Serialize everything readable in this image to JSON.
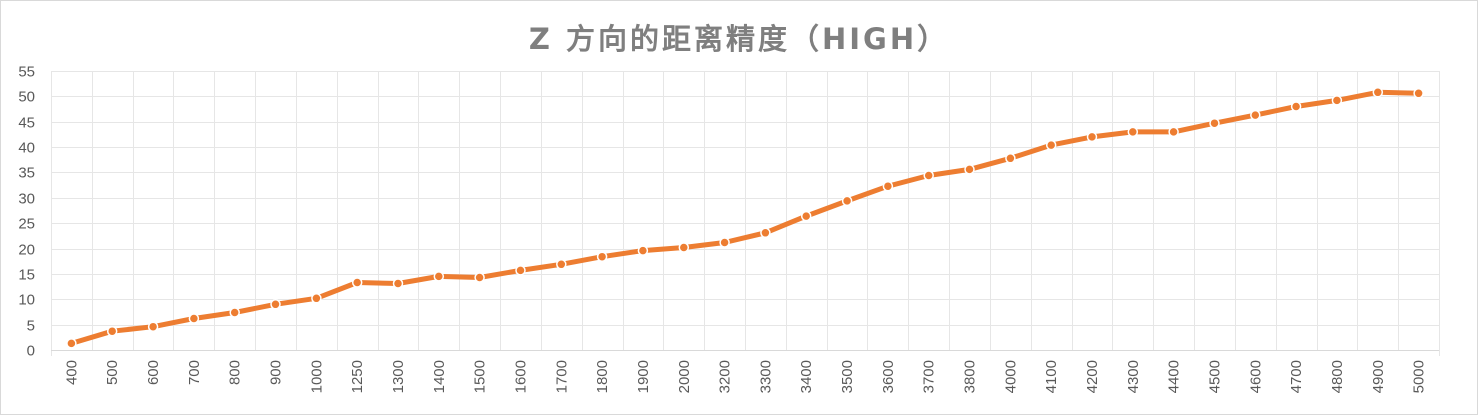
{
  "chart_data": {
    "type": "line",
    "title": "Z 方向的距离精度（HIGH）",
    "xlabel": "",
    "ylabel": "",
    "categories": [
      "400",
      "500",
      "600",
      "700",
      "800",
      "900",
      "1000",
      "1250",
      "1300",
      "1400",
      "1500",
      "1600",
      "1700",
      "1800",
      "1900",
      "2000",
      "3200",
      "3300",
      "3400",
      "3500",
      "3600",
      "3700",
      "3800",
      "4000",
      "4100",
      "4200",
      "4300",
      "4400",
      "4500",
      "4600",
      "4700",
      "4800",
      "4900",
      "5000"
    ],
    "series": [
      {
        "values": [
          1.3,
          3.7,
          4.6,
          6.2,
          7.4,
          9.0,
          10.2,
          13.3,
          13.1,
          14.5,
          14.3,
          15.7,
          16.9,
          18.4,
          19.6,
          20.2,
          21.2,
          23.1,
          26.4,
          29.4,
          32.3,
          34.4,
          35.6,
          37.8,
          40.4,
          42.0,
          43.0,
          43.0,
          44.7,
          46.3,
          48.0,
          49.2,
          50.8,
          50.6
        ],
        "color": "#ed7d31"
      }
    ],
    "ylim": [
      0,
      55
    ],
    "ytick_step": 5,
    "grid": true,
    "x_tick_rotation": "vertical"
  }
}
